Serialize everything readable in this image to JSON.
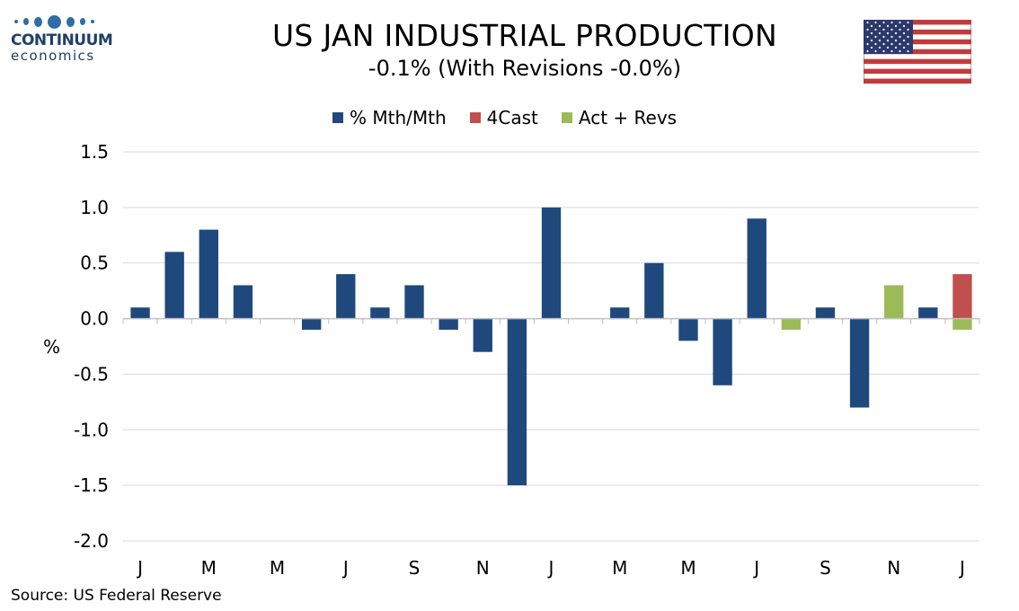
{
  "header": {
    "title": "US JAN INDUSTRIAL PRODUCTION",
    "subtitle": "-0.1% (With Revisions -0.0%)"
  },
  "logo": {
    "name": "CONTINUUM",
    "sub": "economics",
    "color": "#1f3f66"
  },
  "flag": {
    "icon": "us-flag-icon"
  },
  "source": "Source: US Federal Reserve",
  "chart_data": {
    "type": "bar",
    "ylabel": "%",
    "ylim": [
      -2.0,
      1.5
    ],
    "yticks": [
      "1.5",
      "1.0",
      "0.5",
      "0.0",
      "-0.5",
      "-1.0",
      "-1.5",
      "-2.0"
    ],
    "ytick_values": [
      1.5,
      1.0,
      0.5,
      0.0,
      -0.5,
      -1.0,
      -1.5,
      -2.0
    ],
    "xtick_labels": [
      "J",
      "M",
      "M",
      "J",
      "S",
      "N",
      "J",
      "M",
      "M",
      "J",
      "S",
      "N",
      "J"
    ],
    "grid": true,
    "legend_position": "top-center",
    "series": [
      {
        "name": "% Mth/Mth",
        "color": "#1f497d",
        "values": [
          0.1,
          0.6,
          0.8,
          0.3,
          0.0,
          -0.1,
          0.4,
          0.1,
          0.3,
          -0.1,
          -0.3,
          -1.5,
          1.0,
          0.0,
          0.1,
          0.5,
          -0.2,
          -0.6,
          0.9,
          null,
          0.1,
          -0.8,
          null,
          0.1,
          null
        ]
      },
      {
        "name": "4Cast",
        "color": "#c0504d",
        "values": [
          null,
          null,
          null,
          null,
          null,
          null,
          null,
          null,
          null,
          null,
          null,
          null,
          null,
          null,
          null,
          null,
          null,
          null,
          null,
          null,
          null,
          null,
          null,
          null,
          0.4
        ]
      },
      {
        "name": "Act + Revs",
        "color": "#9bbb59",
        "values": [
          null,
          null,
          null,
          null,
          null,
          null,
          null,
          null,
          null,
          null,
          null,
          null,
          null,
          null,
          null,
          null,
          null,
          null,
          null,
          -0.1,
          null,
          null,
          0.3,
          null,
          -0.1
        ]
      }
    ]
  }
}
